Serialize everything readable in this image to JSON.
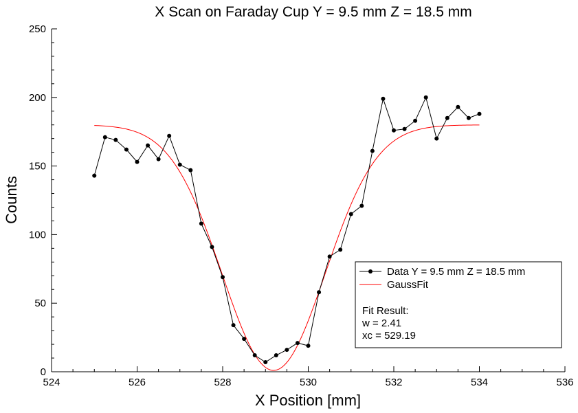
{
  "chart_data": {
    "type": "line",
    "title": "X Scan on Faraday Cup Y = 9.5 mm Z = 18.5 mm",
    "xlabel": "X Position [mm]",
    "ylabel": "Counts",
    "xlim": [
      524,
      536
    ],
    "ylim": [
      0,
      250
    ],
    "x_ticks": [
      524,
      526,
      528,
      530,
      532,
      534,
      536
    ],
    "y_ticks": [
      0,
      50,
      100,
      150,
      200,
      250
    ],
    "grid": false,
    "legend_position": "bottom-right",
    "series": [
      {
        "name": "Data Y = 9.5 mm Z = 18.5 mm",
        "color": "#000000",
        "marker": "circle",
        "x": [
          525.0,
          525.25,
          525.5,
          525.75,
          526.0,
          526.25,
          526.5,
          526.75,
          527.0,
          527.25,
          527.5,
          527.75,
          528.0,
          528.25,
          528.5,
          528.75,
          529.0,
          529.25,
          529.5,
          529.75,
          530.0,
          530.25,
          530.5,
          530.75,
          531.0,
          531.25,
          531.5,
          531.75,
          532.0,
          532.25,
          532.5,
          532.75,
          533.0,
          533.25,
          533.5,
          533.75,
          534.0
        ],
        "y": [
          143,
          171,
          169,
          162,
          153,
          165,
          155,
          172,
          151,
          147,
          108,
          91,
          69,
          34,
          24,
          12,
          7,
          12,
          16,
          21,
          19,
          58,
          84,
          89,
          115,
          121,
          161,
          199,
          176,
          177,
          183,
          200,
          170,
          185,
          193,
          185,
          188
        ]
      },
      {
        "name": "GaussFit",
        "color": "#ff0000",
        "marker": "none",
        "function": "gauss",
        "params": {
          "baseline": 180,
          "amplitude": -179,
          "xc": 529.19,
          "w": 2.41
        },
        "x_range": [
          525,
          534
        ]
      }
    ],
    "annotations": {
      "fit_result_label": "Fit Result:",
      "fit_w": "w = 2.41",
      "fit_xc": "xc = 529.19"
    }
  }
}
